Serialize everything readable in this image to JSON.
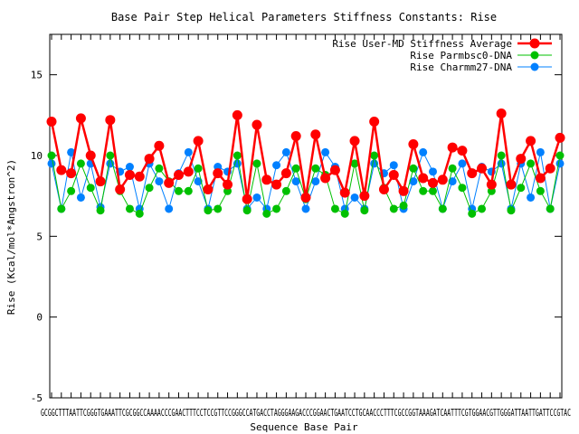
{
  "chart_data": {
    "type": "line",
    "title": "Base Pair Step Helical Parameters Stiffness Constants: Rise",
    "xlabel": "Sequence Base Pair",
    "ylabel": "Rise (Kcal/mol*Angstron^2)",
    "ylim": [
      -5,
      17.5
    ],
    "yticks": [
      -5,
      0,
      5,
      10,
      15
    ],
    "xticks_text": "GCGGCTTTAATTCGGGTGAAATTCGCGGCCAAAACCCGAACTTTCCTCCGTTCCGGGCCATGACCTAGGGAAGACCCGGAACTGAATCCTGCAACCCTTTCGCCGGTAAAGATCAATTTCGTGGAACGTTGGGATTAATTGATTCCGTAC",
    "grid": false,
    "legend_position": "top-right",
    "series": [
      {
        "name": "Rise User-MD Stiffness Average",
        "color": "#ff0000",
        "values": [
          12.1,
          9.1,
          8.9,
          12.3,
          10.0,
          8.4,
          12.2,
          7.9,
          8.8,
          8.7,
          9.8,
          10.6,
          8.3,
          8.8,
          9.0,
          10.9,
          7.9,
          8.9,
          8.2,
          12.5,
          7.3,
          11.9,
          8.5,
          8.2,
          8.9,
          11.2,
          7.4,
          11.3,
          8.6,
          9.1,
          7.7,
          10.9,
          7.5,
          12.1,
          7.9,
          8.8,
          7.8,
          10.7,
          8.6,
          8.3,
          8.5,
          10.5,
          10.3,
          8.9,
          9.2,
          8.2,
          12.6,
          8.2,
          9.8,
          10.9,
          8.6,
          9.2,
          11.1
        ],
        "xpos": [
          0,
          1,
          2,
          3,
          4,
          5,
          6,
          7,
          8,
          9,
          10,
          11,
          12,
          13,
          14,
          15,
          16,
          17,
          18,
          19,
          20,
          21,
          22,
          23,
          24,
          25,
          26,
          27,
          28,
          29,
          30,
          31,
          32,
          33,
          34,
          35,
          36,
          37,
          38,
          39,
          40,
          41,
          42,
          43,
          44,
          45,
          46,
          47,
          48,
          49,
          50,
          51,
          52
        ]
      },
      {
        "name": "Rise Parmbsc0-DNA",
        "color": "#00c000",
        "values": [
          10.0,
          6.7,
          7.8,
          9.5,
          8.0,
          6.6,
          10.0,
          7.8,
          6.7,
          6.4,
          8.0,
          9.2,
          8.4,
          7.8,
          7.8,
          9.2,
          6.6,
          6.7,
          7.8,
          10.0,
          6.6,
          9.5,
          6.4,
          6.7,
          7.8,
          9.2,
          7.3,
          9.2,
          8.8,
          6.7,
          6.4,
          9.5,
          6.6,
          10.0,
          8.0,
          6.7,
          6.9,
          9.2,
          7.8,
          7.8,
          6.7,
          9.2,
          8.0,
          6.4,
          6.7,
          7.8,
          10.0,
          6.6,
          8.0,
          9.5,
          7.8,
          6.7,
          10.0
        ],
        "xpos": [
          0,
          1,
          2,
          3,
          4,
          5,
          6,
          7,
          8,
          9,
          10,
          11,
          12,
          13,
          14,
          15,
          16,
          17,
          18,
          19,
          20,
          21,
          22,
          23,
          24,
          25,
          26,
          27,
          28,
          29,
          30,
          31,
          32,
          33,
          34,
          35,
          36,
          37,
          38,
          39,
          40,
          41,
          42,
          43,
          44,
          45,
          46,
          47,
          48,
          49,
          50,
          51,
          52
        ]
      },
      {
        "name": "Rise Charmm27-DNA",
        "color": "#0080ff",
        "values": [
          9.5,
          6.7,
          10.2,
          7.4,
          9.5,
          6.8,
          9.5,
          9.0,
          9.3,
          6.7,
          9.5,
          8.4,
          6.7,
          8.9,
          10.2,
          8.4,
          6.7,
          9.3,
          9.0,
          9.5,
          6.7,
          7.4,
          6.7,
          9.4,
          10.2,
          8.4,
          6.7,
          8.4,
          10.2,
          9.3,
          6.7,
          7.4,
          6.7,
          9.5,
          8.9,
          9.4,
          6.7,
          8.4,
          10.2,
          9.0,
          6.7,
          8.4,
          9.5,
          6.7,
          9.3,
          9.0,
          9.5,
          6.7,
          9.5,
          7.4,
          10.2,
          6.7,
          9.5
        ],
        "xpos": [
          0,
          1,
          2,
          3,
          4,
          5,
          6,
          7,
          8,
          9,
          10,
          11,
          12,
          13,
          14,
          15,
          16,
          17,
          18,
          19,
          20,
          21,
          22,
          23,
          24,
          25,
          26,
          27,
          28,
          29,
          30,
          31,
          32,
          33,
          34,
          35,
          36,
          37,
          38,
          39,
          40,
          41,
          42,
          43,
          44,
          45,
          46,
          47,
          48,
          49,
          50,
          51,
          52
        ]
      }
    ]
  }
}
